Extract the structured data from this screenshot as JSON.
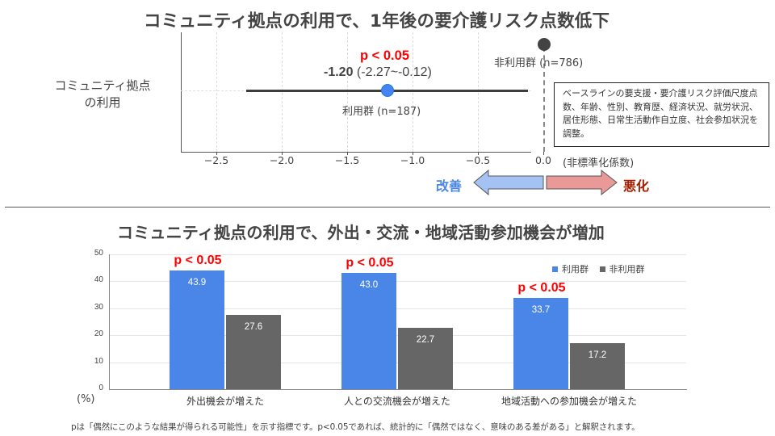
{
  "top": {
    "title": "コミュニティ拠点の利用で、1年後の要介護リスク点数低下",
    "row_label_line1": "コミュニティ拠点",
    "row_label_line2": "の利用",
    "p_label": "p < 0.05",
    "estimate_bold": "-1.20",
    "estimate_ci": " (-2.27~-0.12)",
    "user_group_label": "利用群 (n=187)",
    "nonuser_group_label": "非利用群 (n=786)",
    "axis_unit_label": "(非標準化係数)",
    "note": "ベースラインの要支援・要介護リスク評価尺度点数、年齢、性別、教育歴、経済状況、就労状況、居住形態、日常生活動作自立度、社会参加状況を調整。",
    "improve_label": "改善",
    "worsen_label": "悪化",
    "colors": {
      "improve": "#4a86e8",
      "worsen": "#a61c00",
      "improve_arrow": "#a4c2f4",
      "worsen_arrow": "#ea9999",
      "point_user": "#4285f4",
      "point_nonuser": "#434343"
    }
  },
  "bottom": {
    "title": "コミュニティ拠点の利用で、外出・交流・地域活動参加機会が増加",
    "y_unit": "(%)",
    "legend": [
      "利用群",
      "非利用群"
    ],
    "footnote": "pは「偶然にこのような結果が得られる可能性」を示す指標です。p<0.05であれば、統計的に「偶然ではなく、意味のある差がある」と解釈されます。"
  },
  "chart_data": [
    {
      "type": "scatter",
      "subtype": "forest_plot",
      "title": "コミュニティ拠点の利用で、1年後の要介護リスク点数低下",
      "xlabel": "(非標準化係数)",
      "ylabel": "コミュニティ拠点の利用",
      "xlim": [
        -2.78,
        0.12
      ],
      "x_ticks": [
        "−2.5",
        "−2.0",
        "−1.5",
        "−1.0",
        "−0.5",
        "0.0"
      ],
      "x_tick_values": [
        -2.5,
        -2.0,
        -1.5,
        -1.0,
        -0.5,
        0.0
      ],
      "grid": true,
      "points": [
        {
          "name": "利用群 (n=187)",
          "estimate": -1.2,
          "ci_low": -2.27,
          "ci_high": -0.12,
          "p": "p < 0.05",
          "color": "#4285f4"
        },
        {
          "name": "非利用群 (n=786)",
          "estimate": 0.0,
          "reference": true,
          "color": "#434343"
        }
      ],
      "annotations": [
        "p < 0.05",
        "-1.20 (-2.27~-0.12)",
        "改善",
        "悪化"
      ]
    },
    {
      "type": "bar",
      "title": "コミュニティ拠点の利用で、外出・交流・地域活動参加機会が増加",
      "categories": [
        "外出機会が増えた",
        "人との交流機会が増えた",
        "地域活動への参加機会が増えた"
      ],
      "series": [
        {
          "name": "利用群",
          "values": [
            43.9,
            43.0,
            33.7
          ],
          "color": "#4a86e8"
        },
        {
          "name": "非利用群",
          "values": [
            27.6,
            22.7,
            17.2
          ],
          "color": "#666666"
        }
      ],
      "annotations": [
        "p < 0.05",
        "p < 0.05",
        "p < 0.05"
      ],
      "xlabel": "",
      "ylabel": "(%)",
      "ylim": [
        0,
        50
      ],
      "y_ticks": [
        "0",
        "10",
        "20",
        "30",
        "40",
        "50"
      ],
      "grid": true,
      "legend_position": "top-right"
    }
  ]
}
